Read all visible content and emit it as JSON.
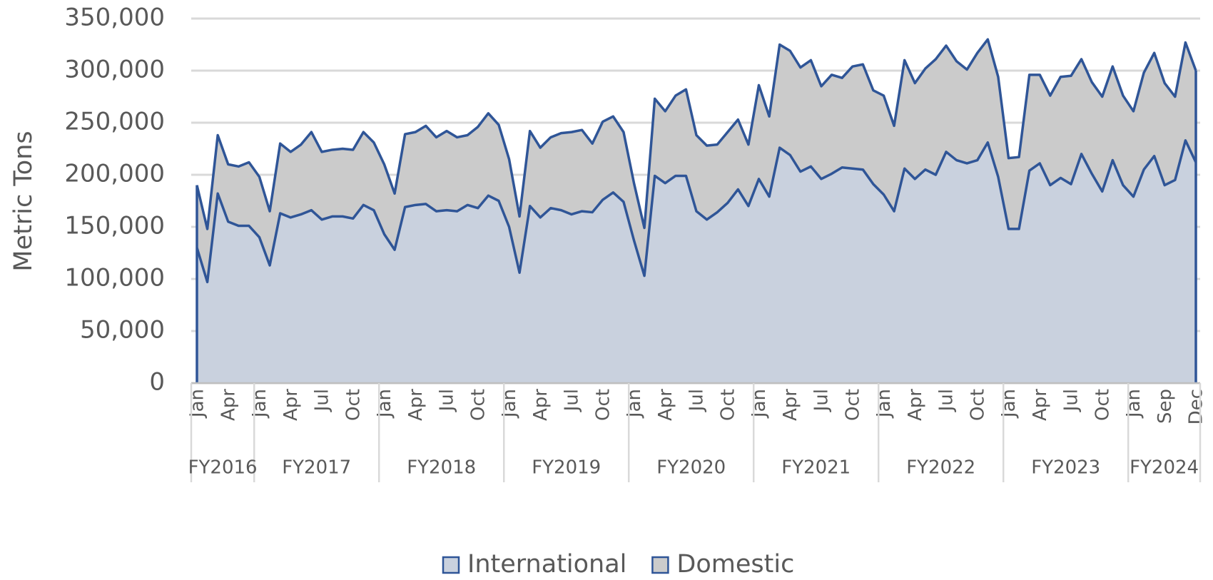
{
  "chart_data": {
    "type": "stacked_area",
    "y_label": "Metric Tons",
    "groups": [
      {
        "label": "FY2016",
        "categories": [
          "Jan",
          null,
          null,
          "Apr",
          null,
          null
        ]
      },
      {
        "label": "FY2017",
        "categories": [
          "Jan",
          null,
          null,
          "Apr",
          null,
          null,
          "Jul",
          null,
          null,
          "Oct",
          null,
          null
        ]
      },
      {
        "label": "FY2018",
        "categories": [
          "Jan",
          null,
          null,
          "Apr",
          null,
          null,
          "Jul",
          null,
          null,
          "Oct",
          null,
          null
        ]
      },
      {
        "label": "FY2019",
        "categories": [
          "Jan",
          null,
          null,
          "Apr",
          null,
          null,
          "Jul",
          null,
          null,
          "Oct",
          null,
          null
        ]
      },
      {
        "label": "FY2020",
        "categories": [
          "Jan",
          null,
          null,
          "Apr",
          null,
          null,
          "Jul",
          null,
          null,
          "Oct",
          null,
          null
        ]
      },
      {
        "label": "FY2021",
        "categories": [
          "Jan",
          null,
          null,
          "Apr",
          null,
          null,
          "Jul",
          null,
          null,
          "Oct",
          null,
          null
        ]
      },
      {
        "label": "FY2022",
        "categories": [
          "Jan",
          null,
          null,
          "Apr",
          null,
          null,
          "Jul",
          null,
          null,
          "Oct",
          null,
          null
        ]
      },
      {
        "label": "FY2023",
        "categories": [
          "Jan",
          null,
          null,
          "Apr",
          null,
          null,
          "Jul",
          null,
          null,
          "Oct",
          null,
          null
        ]
      },
      {
        "label": "FY2024",
        "categories": [
          "Jan",
          null,
          null,
          "Sep",
          null,
          null,
          "Dec"
        ]
      }
    ],
    "series": [
      {
        "name": "International",
        "color": "#c9d1de",
        "values": [
          130000,
          97000,
          182000,
          155000,
          151000,
          151000,
          140000,
          113000,
          163000,
          159000,
          162000,
          166000,
          157000,
          160000,
          160000,
          158000,
          171000,
          166000,
          143000,
          128000,
          169000,
          171000,
          172000,
          165000,
          166000,
          165000,
          171000,
          168000,
          180000,
          175000,
          150000,
          106000,
          170000,
          159000,
          168000,
          166000,
          162000,
          165000,
          164000,
          176000,
          183000,
          174000,
          137000,
          103000,
          199000,
          192000,
          199000,
          199000,
          165000,
          157000,
          164000,
          173000,
          186000,
          170000,
          196000,
          179000,
          226000,
          219000,
          203000,
          208000,
          196000,
          201000,
          207000,
          206000,
          205000,
          191000,
          181000,
          165000,
          206000,
          196000,
          205000,
          200000,
          222000,
          214000,
          211000,
          214000,
          231000,
          198000,
          148000,
          148000,
          204000,
          211000,
          190000,
          197000,
          191000,
          220000,
          201000,
          184000,
          214000,
          190000,
          179000,
          205000,
          218000,
          190000,
          195000,
          233000,
          212000
        ]
      },
      {
        "name": "Domestic",
        "color": "#cbcbcb",
        "values": [
          60000,
          51000,
          56000,
          55000,
          57000,
          61000,
          58000,
          52000,
          67000,
          63000,
          67000,
          75000,
          65000,
          64000,
          65000,
          66000,
          70000,
          65000,
          67000,
          54000,
          70000,
          70000,
          75000,
          71000,
          76000,
          71000,
          67000,
          78000,
          79000,
          73000,
          65000,
          54000,
          72000,
          67000,
          68000,
          74000,
          79000,
          78000,
          66000,
          75000,
          73000,
          67000,
          55000,
          46000,
          74000,
          69000,
          77000,
          83000,
          73000,
          71000,
          65000,
          68000,
          67000,
          59000,
          90000,
          77000,
          99000,
          100000,
          100000,
          102000,
          89000,
          95000,
          86000,
          98000,
          101000,
          90000,
          95000,
          82000,
          104000,
          92000,
          97000,
          111000,
          102000,
          95000,
          90000,
          103000,
          99000,
          96000,
          68000,
          69000,
          92000,
          85000,
          86000,
          97000,
          104000,
          91000,
          88000,
          91000,
          90000,
          86000,
          82000,
          93000,
          99000,
          98000,
          80000,
          94000,
          88000
        ]
      }
    ],
    "edge_color": "#2f5597",
    "ylim": [
      0,
      350000
    ],
    "yticks": [
      0,
      {
        "value": 50000,
        "label": "50,000"
      },
      {
        "value": 100000,
        "label": "100,000"
      },
      {
        "value": 150000,
        "label": "150,000"
      },
      {
        "value": 200000,
        "label": "200,000"
      },
      {
        "value": 250000,
        "label": "250,000"
      },
      {
        "value": 300000,
        "label": "300,000"
      },
      {
        "value": 350000,
        "label": "350,000"
      }
    ],
    "grid": true,
    "legend": "bottom"
  }
}
